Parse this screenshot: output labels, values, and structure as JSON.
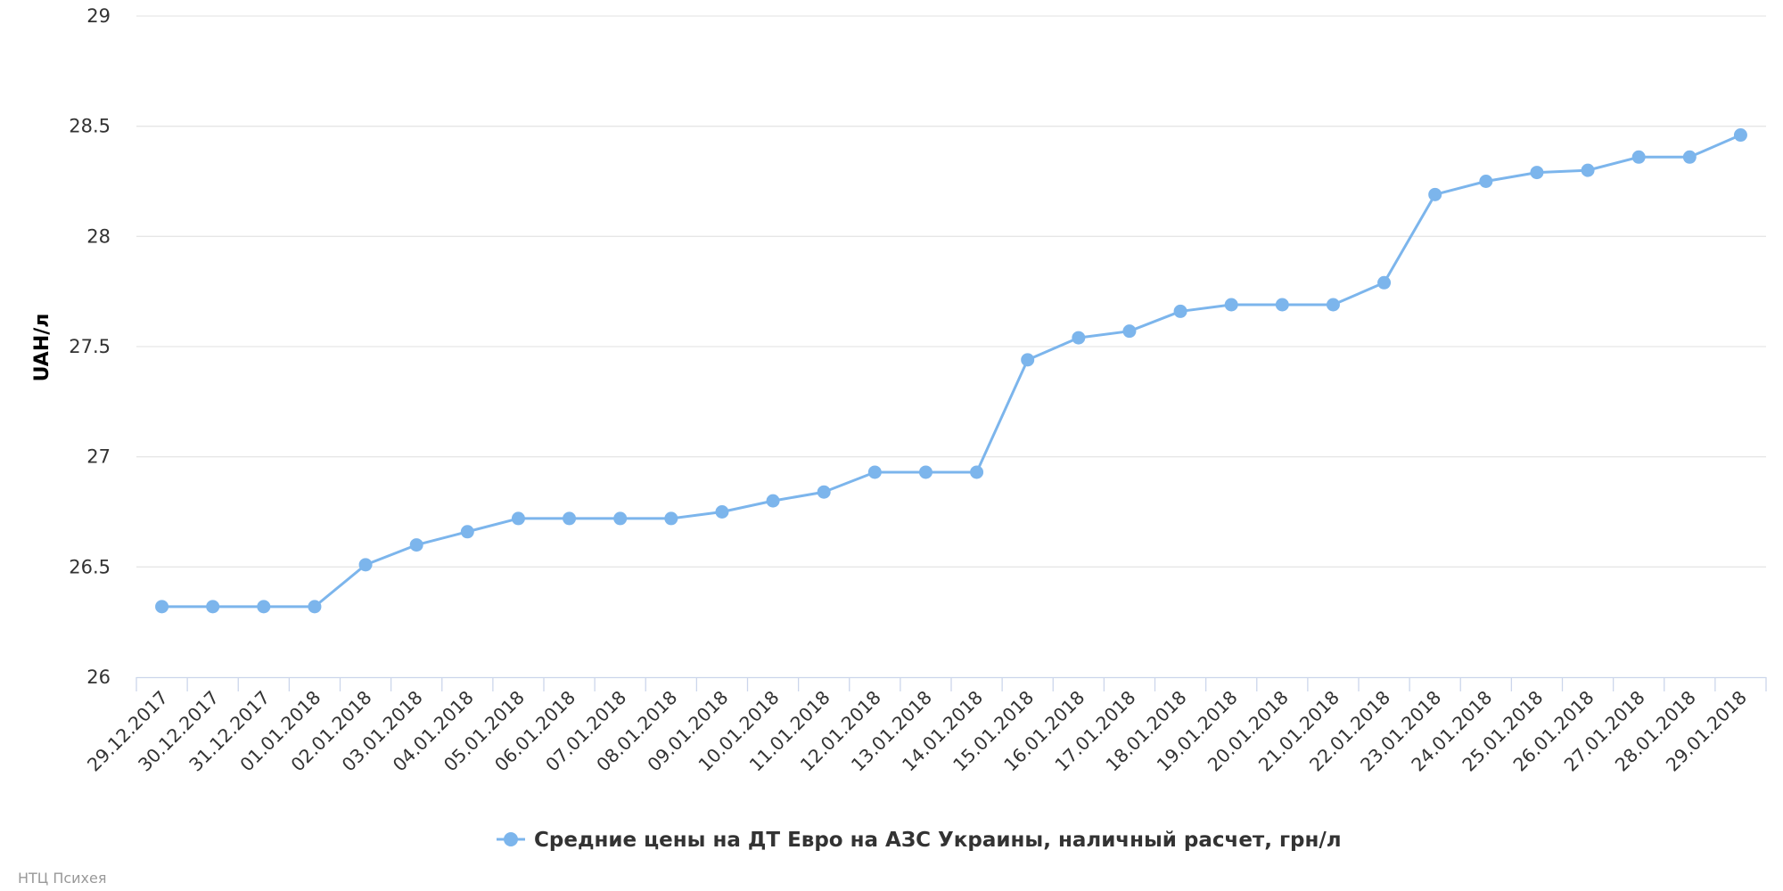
{
  "colors": {
    "series": "#7cb5ec",
    "grid": "#e6e6e6",
    "axis": "#ccd6eb",
    "text": "#333333",
    "credits": "#999999"
  },
  "credits": "НТЦ Психея",
  "chart_data": {
    "type": "line",
    "title": "",
    "xlabel": "",
    "ylabel": "UAH/л",
    "ylim": [
      26,
      29
    ],
    "yticks": [
      "26",
      "26.5",
      "27",
      "27.5",
      "28",
      "28.5",
      "29"
    ],
    "grid": true,
    "legend_position": "bottom-center",
    "categories": [
      "29.12.2017",
      "30.12.2017",
      "31.12.2017",
      "01.01.2018",
      "02.01.2018",
      "03.01.2018",
      "04.01.2018",
      "05.01.2018",
      "06.01.2018",
      "07.01.2018",
      "08.01.2018",
      "09.01.2018",
      "10.01.2018",
      "11.01.2018",
      "12.01.2018",
      "13.01.2018",
      "14.01.2018",
      "15.01.2018",
      "16.01.2018",
      "17.01.2018",
      "18.01.2018",
      "19.01.2018",
      "20.01.2018",
      "21.01.2018",
      "22.01.2018",
      "23.01.2018",
      "24.01.2018",
      "25.01.2018",
      "26.01.2018",
      "27.01.2018",
      "28.01.2018",
      "29.01.2018"
    ],
    "series": [
      {
        "name": "Средние цены на ДТ Евро на АЗС Украины, наличный расчет, грн/л",
        "values": [
          26.32,
          26.32,
          26.32,
          26.32,
          26.51,
          26.6,
          26.66,
          26.72,
          26.72,
          26.72,
          26.72,
          26.75,
          26.8,
          26.84,
          26.93,
          26.93,
          26.93,
          27.44,
          27.54,
          27.57,
          27.66,
          27.69,
          27.69,
          27.69,
          27.79,
          28.19,
          28.25,
          28.29,
          28.3,
          28.36,
          28.36,
          28.46
        ]
      }
    ]
  }
}
